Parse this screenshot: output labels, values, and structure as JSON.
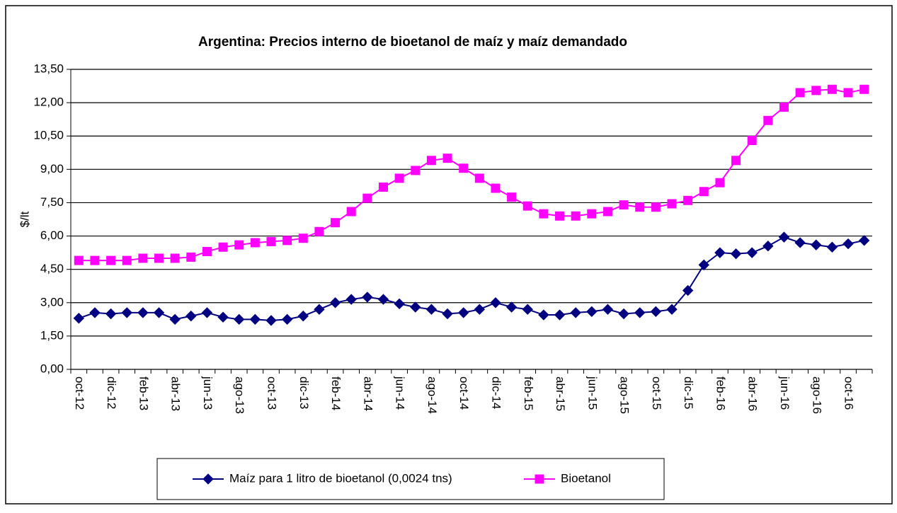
{
  "chart_data": {
    "type": "line",
    "title": "Argentina: Precios interno de bioetanol de maíz y maíz demandado",
    "y_label": "$/lt",
    "categories": [
      "oct-12",
      null,
      "dic-12",
      null,
      "feb-13",
      null,
      "abr-13",
      null,
      "jun-13",
      null,
      "ago-13",
      null,
      "oct-13",
      null,
      "dic-13",
      null,
      "feb-14",
      null,
      "abr-14",
      null,
      "jun-14",
      null,
      "ago-14",
      null,
      "oct-14",
      null,
      "dic-14",
      null,
      "feb-15",
      null,
      "abr-15",
      null,
      "jun-15",
      null,
      "ago-15",
      null,
      "oct-15",
      null,
      "dic-15",
      null,
      "feb-16",
      null,
      "abr-16",
      null,
      "jun-16",
      null,
      "ago-16",
      null,
      "oct-16",
      null
    ],
    "series": [
      {
        "name": "Maíz para 1 litro de bioetanol (0,0024 tns)",
        "color": "#000080",
        "marker": "diamond",
        "values": [
          2.3,
          2.55,
          2.5,
          2.55,
          2.55,
          2.55,
          2.25,
          2.4,
          2.55,
          2.35,
          2.25,
          2.25,
          2.2,
          2.25,
          2.4,
          2.7,
          3.0,
          3.15,
          3.25,
          3.15,
          2.95,
          2.8,
          2.7,
          2.5,
          2.55,
          2.7,
          3.0,
          2.8,
          2.7,
          2.45,
          2.45,
          2.55,
          2.6,
          2.7,
          2.5,
          2.55,
          2.6,
          2.7,
          3.55,
          4.7,
          5.25,
          5.2,
          5.25,
          5.55,
          5.95,
          5.7,
          5.6,
          5.5,
          5.65,
          5.8
        ]
      },
      {
        "name": "Bioetanol",
        "color": "#ff00ff",
        "marker": "square",
        "values": [
          4.9,
          4.9,
          4.9,
          4.9,
          5.0,
          5.0,
          5.0,
          5.05,
          5.3,
          5.5,
          5.6,
          5.7,
          5.75,
          5.8,
          5.9,
          6.2,
          6.6,
          7.1,
          7.7,
          8.2,
          8.6,
          8.95,
          9.4,
          9.5,
          9.05,
          8.6,
          8.15,
          7.75,
          7.35,
          7.0,
          6.9,
          6.9,
          7.0,
          7.1,
          7.4,
          7.3,
          7.3,
          7.45,
          7.6,
          8.0,
          8.4,
          9.4,
          10.3,
          11.2,
          11.8,
          12.45,
          12.55,
          12.6,
          12.45,
          12.6
        ]
      }
    ],
    "ylim": [
      0,
      13.5
    ],
    "yticks": [
      {
        "value": 0,
        "label": "0,00"
      },
      {
        "value": 1.5,
        "label": "1,50"
      },
      {
        "value": 3,
        "label": "3,00"
      },
      {
        "value": 4.5,
        "label": "4,50"
      },
      {
        "value": 6,
        "label": "6,00"
      },
      {
        "value": 7.5,
        "label": "7,50"
      },
      {
        "value": 9,
        "label": "9,00"
      },
      {
        "value": 10.5,
        "label": "10,50"
      },
      {
        "value": 12,
        "label": "12,00"
      },
      {
        "value": 13.5,
        "label": "13,50"
      }
    ],
    "grid": true,
    "legend": "bottom"
  }
}
